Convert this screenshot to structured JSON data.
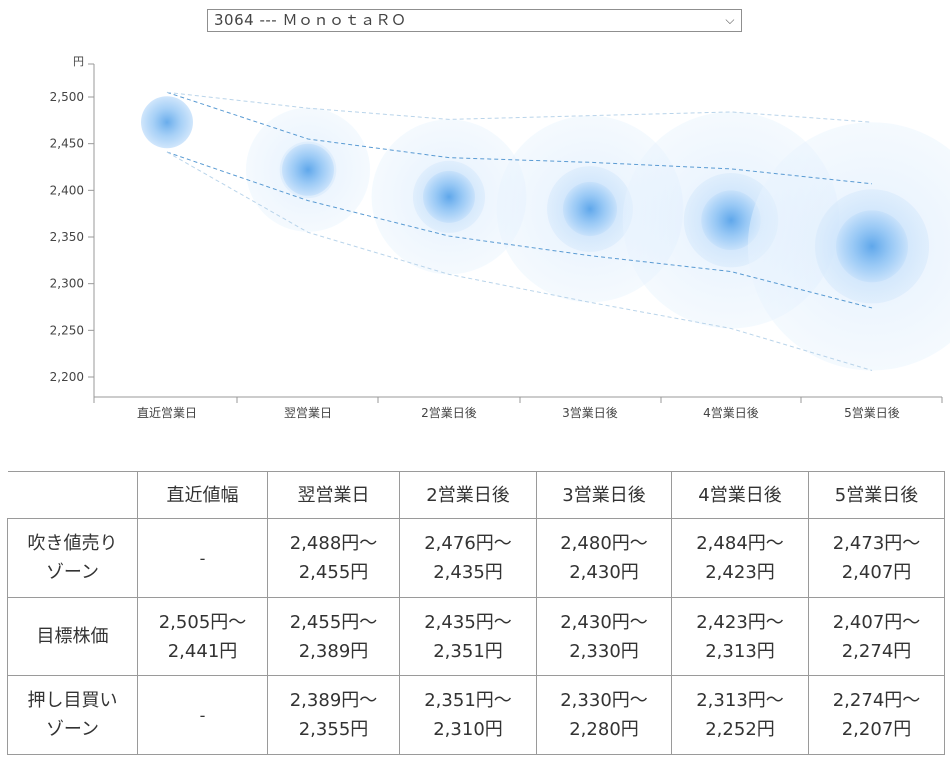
{
  "selector": {
    "value": "3064 --- ＭｏｎｏｔａＲＯ",
    "arrow": "⌵"
  },
  "chart_data": {
    "type": "bubble-forecast",
    "unit_label": "円",
    "ylim": [
      2200,
      2500
    ],
    "yticks": [
      2500,
      2450,
      2400,
      2350,
      2300,
      2250,
      2200
    ],
    "categories": [
      "直近営業日",
      "翌営業日",
      "2営業日後",
      "3営業日後",
      "4営業日後",
      "5営業日後"
    ],
    "target_center": [
      2473,
      2422,
      2393,
      2380,
      2368,
      2340
    ],
    "sell_zone_upper": [
      null,
      2488,
      2476,
      2480,
      2484,
      2473
    ],
    "target_high": [
      2505,
      2455,
      2435,
      2430,
      2423,
      2407
    ],
    "target_low": [
      2441,
      2389,
      2351,
      2330,
      2313,
      2274
    ],
    "buy_zone_lower": [
      null,
      2355,
      2310,
      2280,
      2252,
      2207
    ],
    "colors": {
      "bubble_core": "#6fb3f2",
      "bubble_inner": "#bfdcfa",
      "bubble_outer": "#e3f0fd",
      "target_line": "#5a9bd3",
      "zone_line": "#b9d4ea",
      "axis": "#999999"
    }
  },
  "table": {
    "headers": [
      "",
      "直近値幅",
      "翌営業日",
      "2営業日後",
      "3営業日後",
      "4営業日後",
      "5営業日後"
    ],
    "rows": [
      {
        "label_1": "吹き値売り",
        "label_2": "ゾーン",
        "cells": [
          {
            "line1": "-",
            "line2": ""
          },
          {
            "line1": "2,488円～",
            "line2": "2,455円"
          },
          {
            "line1": "2,476円～",
            "line2": "2,435円"
          },
          {
            "line1": "2,480円～",
            "line2": "2,430円"
          },
          {
            "line1": "2,484円～",
            "line2": "2,423円"
          },
          {
            "line1": "2,473円～",
            "line2": "2,407円"
          }
        ]
      },
      {
        "label_1": "目標株価",
        "label_2": "",
        "cells": [
          {
            "line1": "2,505円～",
            "line2": "2,441円"
          },
          {
            "line1": "2,455円～",
            "line2": "2,389円"
          },
          {
            "line1": "2,435円～",
            "line2": "2,351円"
          },
          {
            "line1": "2,430円～",
            "line2": "2,330円"
          },
          {
            "line1": "2,423円～",
            "line2": "2,313円"
          },
          {
            "line1": "2,407円～",
            "line2": "2,274円"
          }
        ]
      },
      {
        "label_1": "押し目買い",
        "label_2": "ゾーン",
        "cells": [
          {
            "line1": "-",
            "line2": ""
          },
          {
            "line1": "2,389円～",
            "line2": "2,355円"
          },
          {
            "line1": "2,351円～",
            "line2": "2,310円"
          },
          {
            "line1": "2,330円～",
            "line2": "2,280円"
          },
          {
            "line1": "2,313円～",
            "line2": "2,252円"
          },
          {
            "line1": "2,274円～",
            "line2": "2,207円"
          }
        ]
      }
    ]
  }
}
